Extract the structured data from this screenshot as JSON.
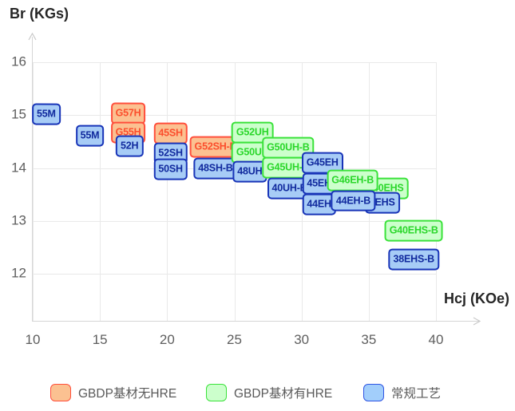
{
  "chart_data": {
    "type": "scatter",
    "title": "",
    "xlabel": "Hcj (KOe)",
    "ylabel": "Br (KGs)",
    "grid": true,
    "legend_position": "bottom",
    "x_axis": {
      "ticks": [
        10,
        15,
        20,
        25,
        30,
        35,
        40
      ],
      "min": 10,
      "max": 43
    },
    "y_axis": {
      "ticks": [
        16,
        15,
        14,
        13,
        12
      ],
      "min": 11.1,
      "max": 16.5
    },
    "series": [
      {
        "id": "gbdp-no-hre",
        "name": "GBDP基材无HRE",
        "fill": "#fbc191",
        "border": "#ff4f3c",
        "text_color": "#fb4e2d"
      },
      {
        "id": "gbdp-hre",
        "name": "GBDP基材有HRE",
        "fill": "#ccffcc",
        "border": "#3ae23a",
        "text_color": "#2bd72b"
      },
      {
        "id": "conventional",
        "name": "常规工艺",
        "fill": "#a7ccf6",
        "border": "#1834b8",
        "text_color": "#112a9e",
        "legend_fill": "#a2cefb",
        "legend_border": "#2e54e3"
      }
    ],
    "points": [
      {
        "label": "55M",
        "x": 11.0,
        "y": 15.02,
        "series": "conventional"
      },
      {
        "label": "55M",
        "x": 14.25,
        "y": 14.61,
        "series": "conventional"
      },
      {
        "label": "G57H",
        "x": 17.1,
        "y": 15.03,
        "series": "gbdp-no-hre"
      },
      {
        "label": "G55H",
        "x": 17.1,
        "y": 14.67,
        "series": "gbdp-no-hre"
      },
      {
        "label": "52H",
        "x": 17.2,
        "y": 14.42,
        "series": "conventional"
      },
      {
        "label": "45SH",
        "x": 20.25,
        "y": 14.65,
        "series": "gbdp-no-hre"
      },
      {
        "label": "52SH",
        "x": 20.25,
        "y": 14.28,
        "series": "conventional"
      },
      {
        "label": "50SH",
        "x": 20.25,
        "y": 13.97,
        "series": "conventional"
      },
      {
        "label": "G52SH-B",
        "x": 23.6,
        "y": 14.4,
        "series": "gbdp-no-hre"
      },
      {
        "label": "48SH-B",
        "x": 23.6,
        "y": 13.99,
        "series": "conventional"
      },
      {
        "label": "G52UH",
        "x": 26.35,
        "y": 14.67,
        "series": "gbdp-hre"
      },
      {
        "label": "G50UH",
        "x": 26.35,
        "y": 14.29,
        "series": "gbdp-hre"
      },
      {
        "label": "48UH",
        "x": 26.15,
        "y": 13.93,
        "series": "conventional"
      },
      {
        "label": "G50UH-B",
        "x": 29.0,
        "y": 14.39,
        "series": "gbdp-hre"
      },
      {
        "label": "G45UH-B",
        "x": 29.0,
        "y": 14.01,
        "series": "gbdp-hre"
      },
      {
        "label": "40UH-B",
        "x": 29.1,
        "y": 13.62,
        "series": "conventional"
      },
      {
        "label": "G45EH",
        "x": 31.55,
        "y": 14.1,
        "series": "conventional"
      },
      {
        "label": "45EH",
        "x": 31.3,
        "y": 13.71,
        "series": "conventional"
      },
      {
        "label": "44EH",
        "x": 31.3,
        "y": 13.31,
        "series": "conventional"
      },
      {
        "label": "40EHS",
        "x": 36.45,
        "y": 13.62,
        "series": "gbdp-hre"
      },
      {
        "label": "2EHS",
        "x": 36.0,
        "y": 13.34,
        "series": "conventional"
      },
      {
        "label": "G46EH-B",
        "x": 33.8,
        "y": 13.76,
        "series": "gbdp-hre"
      },
      {
        "label": "44EH-B",
        "x": 33.85,
        "y": 13.38,
        "series": "conventional"
      },
      {
        "label": "G40EHS-B",
        "x": 38.35,
        "y": 12.82,
        "series": "gbdp-hre"
      },
      {
        "label": "38EHS-B",
        "x": 38.35,
        "y": 12.27,
        "series": "conventional"
      }
    ]
  }
}
